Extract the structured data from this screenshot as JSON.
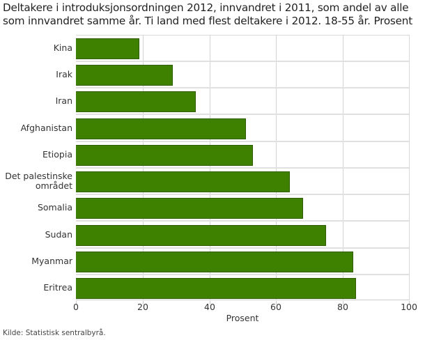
{
  "title": "Deltakere i introduksjonsordningen 2012, innvandret i 2011, som andel av alle som innvandret samme år. Ti land med flest deltakere i 2012. 18-55 år. Prosent",
  "source": "Kilde: Statistisk sentralbyrå.",
  "colors": {
    "bar": "#3e8000",
    "bar_border": "#2e5e00",
    "grid": "#d3d3d3"
  },
  "axis": {
    "xlabel": "Prosent",
    "ticks": [
      "0",
      "20",
      "40",
      "60",
      "80",
      "100"
    ]
  },
  "categories": {
    "0": "Kina",
    "1": "Irak",
    "2": "Iran",
    "3": "Afghanistan",
    "4": "Etiopia",
    "5a": "Det palestinske",
    "5b": "området",
    "6": "Somalia",
    "7": "Sudan",
    "8": "Myanmar",
    "9": "Eritrea"
  },
  "chart_data": {
    "type": "bar",
    "orientation": "horizontal",
    "title": "Deltakere i introduksjonsordningen 2012, innvandret i 2011, som andel av alle som innvandret samme år. Ti land med flest deltakere i 2012. 18-55 år. Prosent",
    "categories": [
      "Kina",
      "Irak",
      "Iran",
      "Afghanistan",
      "Etiopia",
      "Det palestinske området",
      "Somalia",
      "Sudan",
      "Myanmar",
      "Eritrea"
    ],
    "values": [
      19,
      29,
      36,
      51,
      53,
      64,
      68,
      75,
      83,
      84
    ],
    "xlabel": "Prosent",
    "ylabel": "",
    "xlim": [
      0,
      100
    ],
    "xticks": [
      0,
      20,
      40,
      60,
      80,
      100
    ],
    "grid": true,
    "legend": null,
    "source": "Kilde: Statistisk sentralbyrå."
  }
}
